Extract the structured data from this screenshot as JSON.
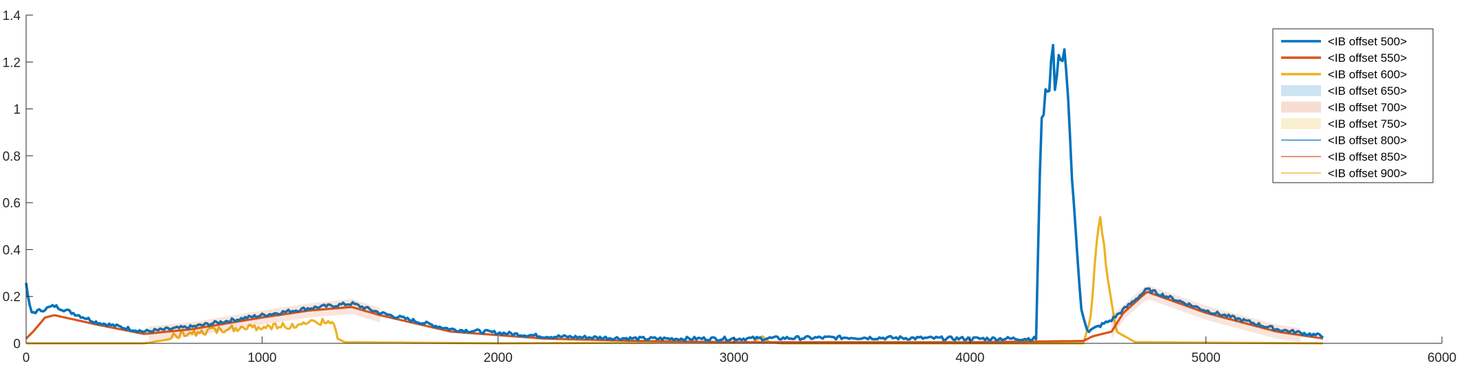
{
  "chart_data": {
    "type": "line",
    "title": "",
    "xlabel": "",
    "ylabel": "",
    "xlim": [
      0,
      6000
    ],
    "ylim": [
      0,
      1.4
    ],
    "x_ticks": [
      0,
      1000,
      2000,
      3000,
      4000,
      5000,
      6000
    ],
    "x_tick_labels": [
      "0",
      "1000",
      "2000",
      "3000",
      "4000",
      "5000",
      "6000"
    ],
    "y_ticks": [
      0,
      0.2,
      0.4,
      0.6,
      0.8,
      1.0,
      1.2,
      1.4
    ],
    "y_tick_labels": [
      "0",
      "0.2",
      "0.4",
      "0.6",
      "0.8",
      "1",
      "1.2",
      "1.4"
    ],
    "grid": false,
    "legend_position": "top-right",
    "series": [
      {
        "name": "<IB offset 500>",
        "style": "thick-line",
        "color": "#0072BD",
        "noise": 0.008,
        "points": [
          [
            0,
            0.25
          ],
          [
            20,
            0.13
          ],
          [
            60,
            0.14
          ],
          [
            120,
            0.16
          ],
          [
            300,
            0.09
          ],
          [
            500,
            0.05
          ],
          [
            700,
            0.07
          ],
          [
            1000,
            0.12
          ],
          [
            1200,
            0.15
          ],
          [
            1380,
            0.17
          ],
          [
            1500,
            0.13
          ],
          [
            1800,
            0.06
          ],
          [
            2200,
            0.03
          ],
          [
            2600,
            0.02
          ],
          [
            3000,
            0.02
          ],
          [
            3500,
            0.025
          ],
          [
            4000,
            0.02
          ],
          [
            4280,
            0.02
          ],
          [
            4300,
            0.9
          ],
          [
            4320,
            1.18
          ],
          [
            4400,
            1.15
          ],
          [
            4440,
            0.6
          ],
          [
            4470,
            0.15
          ],
          [
            4500,
            0.05
          ],
          [
            4600,
            0.1
          ],
          [
            4750,
            0.23
          ],
          [
            5000,
            0.14
          ],
          [
            5300,
            0.06
          ],
          [
            5500,
            0.03
          ]
        ]
      },
      {
        "name": "<IB offset 550>",
        "style": "thick-line",
        "color": "#D95319",
        "noise": 0,
        "points": [
          [
            0,
            0.02
          ],
          [
            30,
            0.05
          ],
          [
            80,
            0.11
          ],
          [
            120,
            0.12
          ],
          [
            300,
            0.08
          ],
          [
            500,
            0.04
          ],
          [
            700,
            0.06
          ],
          [
            1000,
            0.11
          ],
          [
            1200,
            0.14
          ],
          [
            1380,
            0.155
          ],
          [
            1500,
            0.12
          ],
          [
            1800,
            0.05
          ],
          [
            2200,
            0.02
          ],
          [
            2600,
            0.01
          ],
          [
            3000,
            0.005
          ],
          [
            3500,
            0.005
          ],
          [
            4000,
            0.005
          ],
          [
            4480,
            0.01
          ],
          [
            4520,
            0.03
          ],
          [
            4600,
            0.05
          ],
          [
            4650,
            0.13
          ],
          [
            4750,
            0.22
          ],
          [
            5000,
            0.13
          ],
          [
            5300,
            0.05
          ],
          [
            5500,
            0.02
          ]
        ]
      },
      {
        "name": "<IB offset 600>",
        "style": "thick-line",
        "color": "#EDB120",
        "noise": 0,
        "points": [
          [
            0,
            0
          ],
          [
            500,
            0
          ],
          [
            560,
            0.01
          ],
          [
            700,
            0.03
          ],
          [
            900,
            0.05
          ],
          [
            1100,
            0.06
          ],
          [
            1300,
            0.08
          ],
          [
            1320,
            0.02
          ],
          [
            1350,
            0.005
          ],
          [
            2000,
            0
          ],
          [
            3080,
            0.005
          ],
          [
            3120,
            0.03
          ],
          [
            3150,
            0.005
          ],
          [
            3200,
            0
          ],
          [
            4480,
            0
          ],
          [
            4510,
            0.1
          ],
          [
            4550,
            0.55
          ],
          [
            4580,
            0.3
          ],
          [
            4620,
            0.05
          ],
          [
            4700,
            0.005
          ],
          [
            5500,
            0
          ]
        ]
      },
      {
        "name": "<IB offset 650>",
        "style": "band",
        "color": "#0072BD",
        "points": []
      },
      {
        "name": "<IB offset 700>",
        "style": "band",
        "color": "#D95319",
        "points": []
      },
      {
        "name": "<IB offset 750>",
        "style": "band",
        "color": "#EDB120",
        "points": []
      },
      {
        "name": "<IB offset 800>",
        "style": "thin-line",
        "color": "#0072BD",
        "points": []
      },
      {
        "name": "<IB offset 850>",
        "style": "thin-line",
        "color": "#D95319",
        "points": []
      },
      {
        "name": "<IB offset 900>",
        "style": "thin-line",
        "color": "#EDB120",
        "points": []
      }
    ]
  }
}
